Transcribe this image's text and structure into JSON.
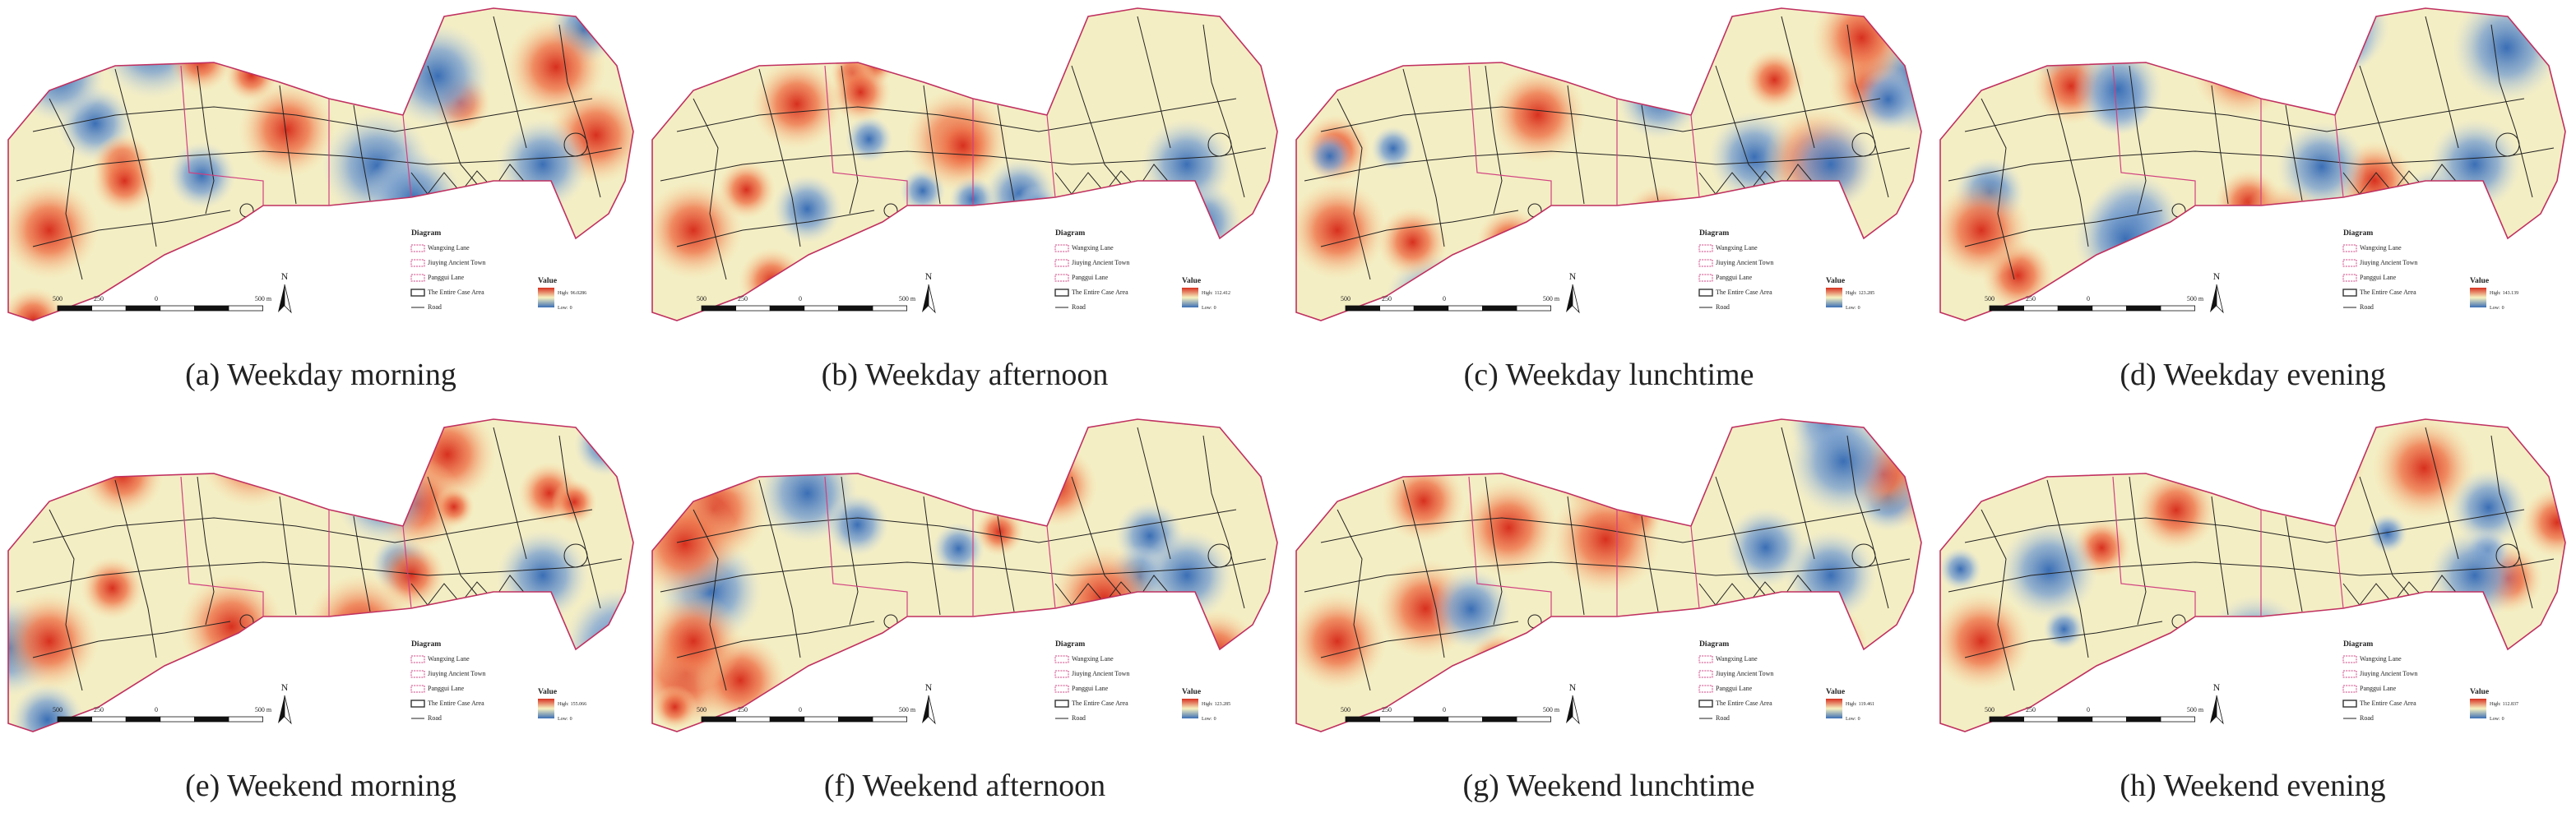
{
  "legend": {
    "title": "Diagram",
    "items": [
      "Wangxing Lane",
      "Jiuying Ancient Town",
      "Panggui Lane",
      "The Entire Case Area",
      "Road"
    ],
    "value_title": "Value",
    "high_label": "High:",
    "low_label": "Low:",
    "low": 0
  },
  "scale_bar": [
    "500",
    "250",
    "0",
    "500 m"
  ],
  "north": "N",
  "panels": [
    {
      "caption": "(a) Weekday morning",
      "high": 96.0286
    },
    {
      "caption": "(b) Weekday afternoon",
      "high": 112.412
    },
    {
      "caption": "(c) Weekday lunchtime",
      "high": 123.285
    },
    {
      "caption": "(d) Weekday evening",
      "high": 143.139
    },
    {
      "caption": "(e) Weekend morning",
      "high": 155.066
    },
    {
      "caption": "(f) Weekend afternoon",
      "high": 123.285
    },
    {
      "caption": "(g) Weekend lunchtime",
      "high": 119.461
    },
    {
      "caption": "(h) Weekend evening",
      "high": 112.837
    }
  ]
}
